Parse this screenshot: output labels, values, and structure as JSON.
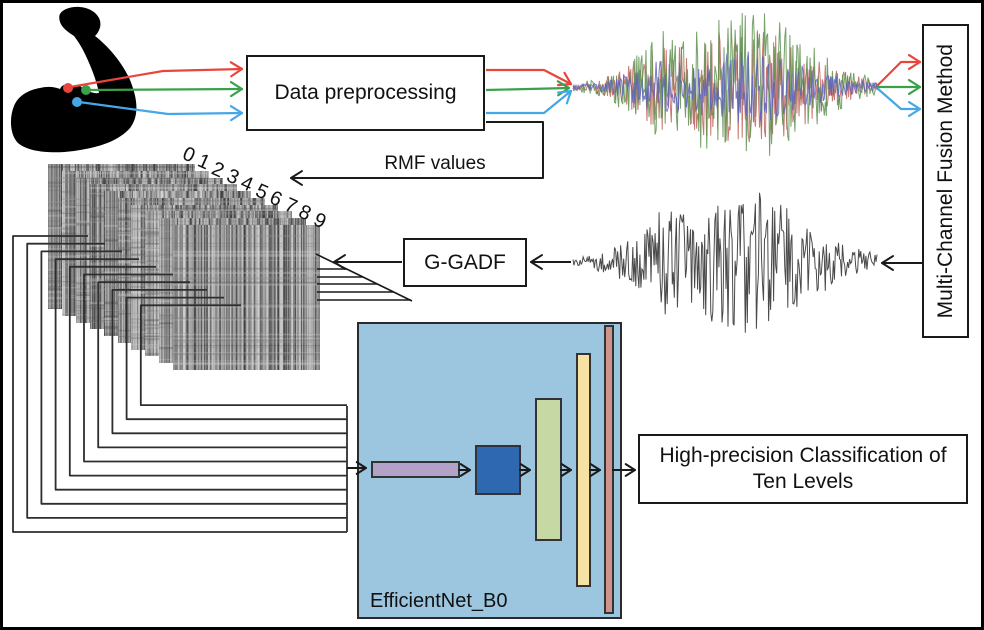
{
  "labels": {
    "data_preprocessing": "Data preprocessing",
    "rmf_values": "RMF values",
    "g_gadf": "G-GADF",
    "fusion": "Multi-Channel Fusion Method",
    "efficientnet": "EfficientNet_B0",
    "classification": "High-precision Classification of Ten Levels"
  },
  "stack": {
    "digits": [
      "0",
      "1",
      "2",
      "3",
      "4",
      "5",
      "6",
      "7",
      "8",
      "9"
    ]
  },
  "colors": {
    "outline": "#1a1a1a",
    "electrode_red": "#e8463c",
    "electrode_green": "#3aa04a",
    "electrode_blue": "#45a7e6",
    "signal_red": "#c0625a",
    "signal_green": "#5d8f4d",
    "signal_blue": "#5f62bd",
    "signal_gray": "#4a4a4a",
    "efficientnet_bg": "#9cc6e0",
    "block_1": "#b2a2c7",
    "block_2": "#2e68b0",
    "block_3": "#c6d9a4",
    "block_4": "#f6e3a3",
    "block_5": "#cf938e"
  }
}
